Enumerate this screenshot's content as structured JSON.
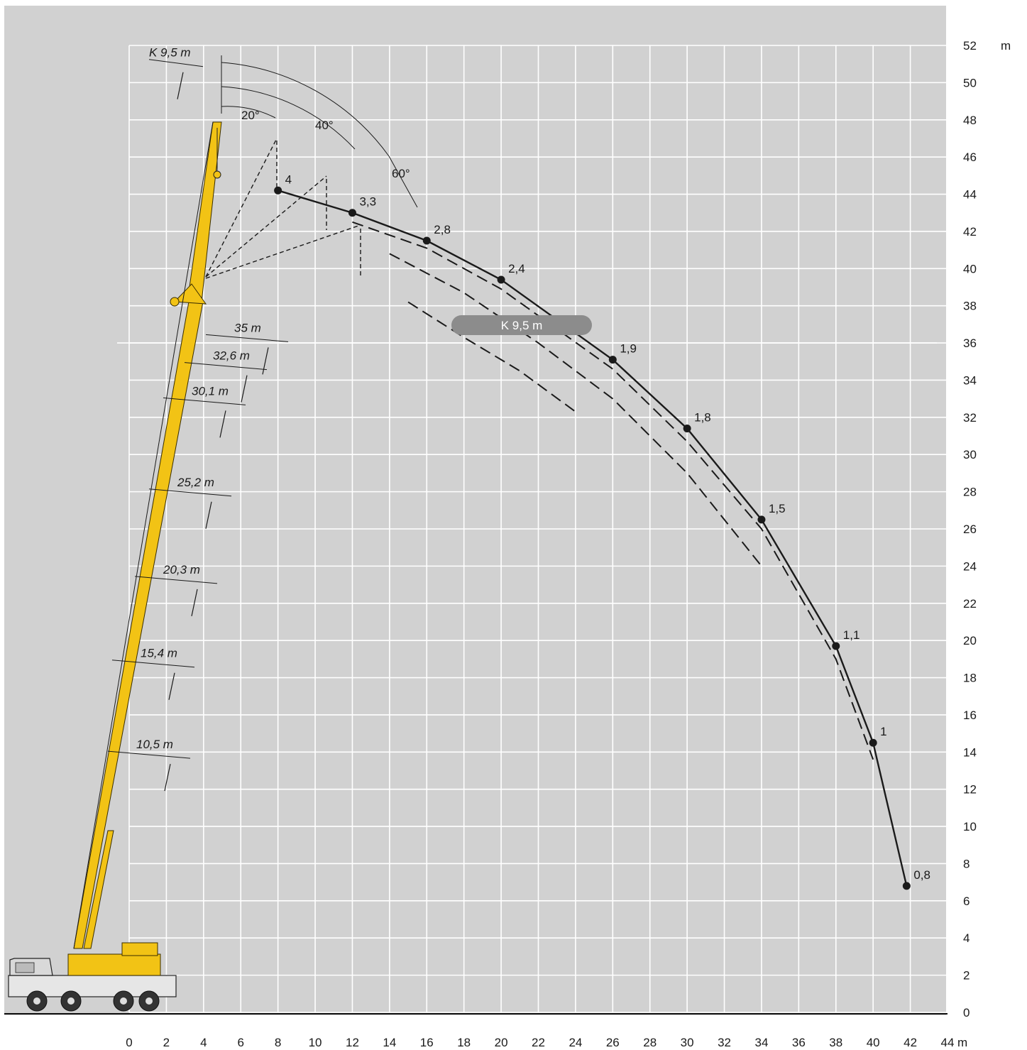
{
  "chart_data": {
    "type": "line",
    "title": "",
    "xlabel": "m",
    "ylabel": "m",
    "xlim": [
      0,
      44
    ],
    "ylim": [
      0,
      52
    ],
    "x_ticks": [
      "0",
      "2",
      "4",
      "6",
      "8",
      "10",
      "12",
      "14",
      "16",
      "18",
      "20",
      "22",
      "24",
      "26",
      "28",
      "30",
      "32",
      "34",
      "36",
      "38",
      "40",
      "42",
      "44"
    ],
    "y_ticks": [
      "0",
      "2",
      "4",
      "6",
      "8",
      "10",
      "12",
      "14",
      "16",
      "18",
      "20",
      "22",
      "24",
      "26",
      "28",
      "30",
      "32",
      "34",
      "36",
      "38",
      "40",
      "42",
      "44",
      "46",
      "48",
      "50",
      "52"
    ],
    "x_unit": "m",
    "y_unit": "m",
    "grid": true,
    "series": [
      {
        "name": "K 9,5 m",
        "style": "solid",
        "points": [
          {
            "x": 8,
            "y": 44.2,
            "label": "4"
          },
          {
            "x": 12,
            "y": 43.0,
            "label": "3,3"
          },
          {
            "x": 16,
            "y": 41.5,
            "label": "2,8"
          },
          {
            "x": 20,
            "y": 39.4,
            "label": "2,4"
          },
          {
            "x": 26,
            "y": 35.1,
            "label": "1,9"
          },
          {
            "x": 30,
            "y": 31.4,
            "label": "1,8"
          },
          {
            "x": 34,
            "y": 26.5,
            "label": "1,5"
          },
          {
            "x": 38,
            "y": 19.7,
            "label": "1,1"
          },
          {
            "x": 40,
            "y": 14.5,
            "label": "1"
          },
          {
            "x": 41.8,
            "y": 6.8,
            "label": "0,8"
          }
        ]
      },
      {
        "name": "",
        "style": "dashed",
        "x": [
          12,
          16,
          20,
          26,
          30,
          34,
          38,
          40
        ],
        "y": [
          42.5,
          41.1,
          38.9,
          34.6,
          30.7,
          26.0,
          19.0,
          13.6
        ]
      },
      {
        "name": "",
        "style": "dashed",
        "x": [
          14,
          18,
          22,
          26,
          30,
          34
        ],
        "y": [
          40.8,
          38.7,
          36.0,
          33.0,
          29.0,
          24.0
        ]
      },
      {
        "name": "",
        "style": "dashed",
        "x": [
          15,
          18,
          21,
          24
        ],
        "y": [
          38.2,
          36.3,
          34.5,
          32.3
        ]
      }
    ],
    "boom_length_labels": [
      "K 9,5 m",
      "35 m",
      "32,6 m",
      "30,1 m",
      "25,2 m",
      "20,3 m",
      "15,4 m",
      "10,5 m"
    ],
    "jib_angle_labels": [
      "20°",
      "40°",
      "60°"
    ],
    "legend_badge": "K 9,5 m",
    "colors": {
      "background": "#d1d1d1",
      "grid": "#ffffff",
      "boom": "#f2c315",
      "curve": "#1a1a1a",
      "badge": "#8c8c8c",
      "badge_text": "#ffffff"
    }
  }
}
